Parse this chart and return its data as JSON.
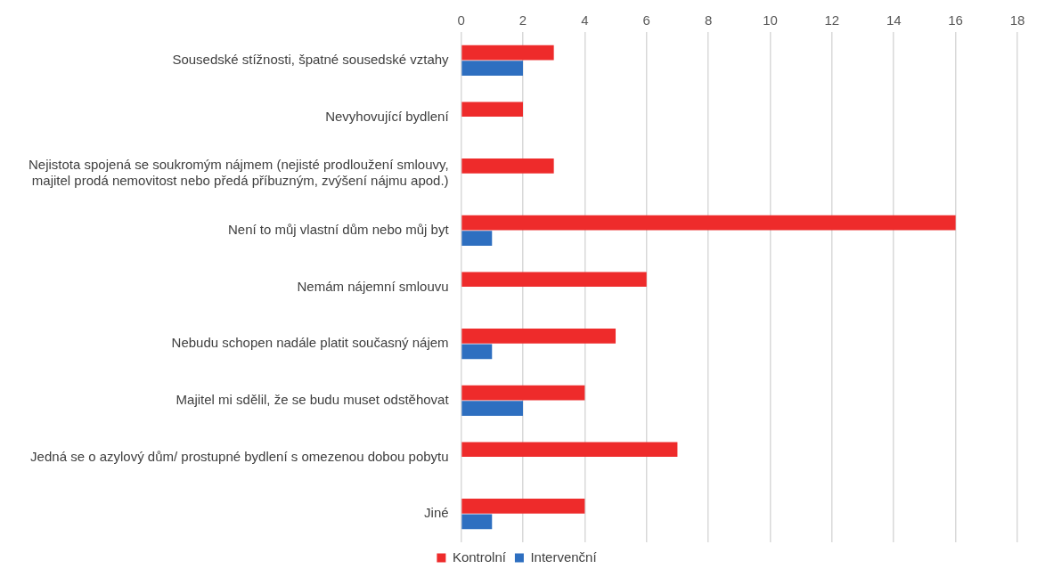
{
  "chart_data": {
    "type": "bar",
    "orientation": "horizontal",
    "categories": [
      "Sousedské stížnosti, špatné sousedské vztahy",
      "Nevyhovující bydlení",
      "Nejistota spojená se soukromým nájmem (nejisté prodloužení smlouvy, majitel prodá nemovitost nebo předá příbuzným, zvýšení nájmu apod.)",
      "Není to můj vlastní dům nebo můj byt",
      "Nemám nájemní smlouvu",
      "Nebudu schopen nadále platit současný nájem",
      "Majitel mi sdělil, že se budu muset odstěhovat",
      "Jedná se o azylový dům/ prostupné bydlení s omezenou dobou pobytu",
      "Jiné"
    ],
    "series": [
      {
        "name": "Kontrolní",
        "color": "#ee2b2b",
        "values": [
          3,
          2,
          3,
          16,
          6,
          5,
          4,
          7,
          4
        ]
      },
      {
        "name": "Intervenční",
        "color": "#2e6fc0",
        "values": [
          2,
          null,
          null,
          1,
          null,
          1,
          2,
          null,
          1
        ]
      }
    ],
    "xlim": [
      0,
      18
    ],
    "xticks": [
      0,
      2,
      4,
      6,
      8,
      10,
      12,
      14,
      16,
      18
    ],
    "grid": "x",
    "legend": "bottom"
  }
}
